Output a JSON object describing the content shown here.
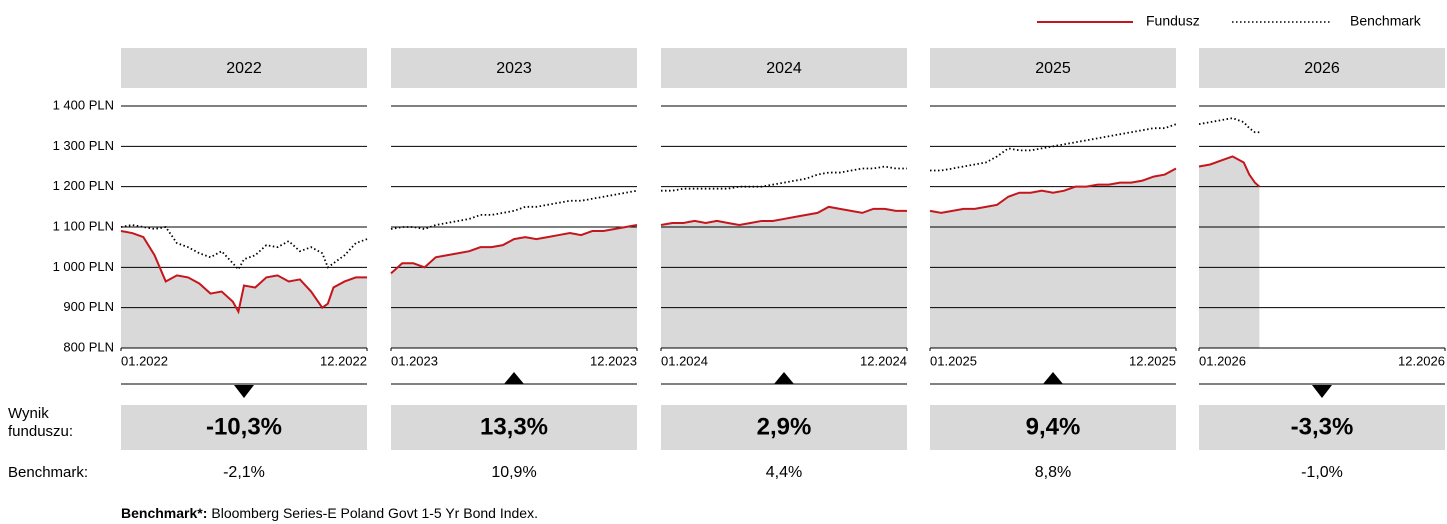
{
  "legend": {
    "series": [
      {
        "name": "Fundusz",
        "color": "#c4161c"
      },
      {
        "name": "Benchmark",
        "color": "#000000"
      }
    ]
  },
  "y_axis": {
    "ylim": [
      800,
      1400
    ],
    "yticks": [
      {
        "value": 800,
        "label": "800 PLN"
      },
      {
        "value": 900,
        "label": "900 PLN"
      },
      {
        "value": 1000,
        "label": "1 000 PLN"
      },
      {
        "value": 1100,
        "label": "1 100 PLN"
      },
      {
        "value": 1200,
        "label": "1 200 PLN"
      },
      {
        "value": 1300,
        "label": "1 300 PLN"
      },
      {
        "value": 1400,
        "label": "1 400 PLN"
      }
    ]
  },
  "row_labels": {
    "fund": "Wynik funduszu:",
    "benchmark": "Benchmark:"
  },
  "chart_data": [
    {
      "type": "line",
      "title": "2022",
      "xlim": [
        1,
        12
      ],
      "xticks": [
        {
          "value": 1,
          "label": "01.2022"
        },
        {
          "value": 12,
          "label": "12.2022"
        }
      ],
      "x": [
        1,
        1.5,
        2,
        2.5,
        3,
        3.5,
        4,
        4.5,
        5,
        5.5,
        6,
        6.25,
        6.5,
        7,
        7.5,
        8,
        8.5,
        9,
        9.5,
        10,
        10.25,
        10.5,
        11,
        11.5,
        12
      ],
      "series": [
        {
          "values": [
            1090,
            1085,
            1075,
            1030,
            965,
            980,
            975,
            960,
            935,
            940,
            915,
            890,
            955,
            950,
            975,
            980,
            965,
            970,
            940,
            900,
            910,
            950,
            965,
            975,
            975
          ]
        },
        {
          "values": [
            1100,
            1105,
            1100,
            1095,
            1100,
            1060,
            1050,
            1035,
            1025,
            1040,
            1010,
            995,
            1020,
            1030,
            1055,
            1050,
            1065,
            1040,
            1050,
            1035,
            1000,
            1010,
            1030,
            1060,
            1070
          ]
        }
      ],
      "fund_return": -10.3,
      "fund_return_label": "-10,3%",
      "benchmark_return": -2.1,
      "benchmark_return_label": "-2,1%"
    },
    {
      "type": "line",
      "title": "2023",
      "xlim": [
        1,
        12
      ],
      "xticks": [
        {
          "value": 1,
          "label": "01.2023"
        },
        {
          "value": 12,
          "label": "12.2023"
        }
      ],
      "x": [
        1,
        1.5,
        2,
        2.5,
        3,
        3.5,
        4,
        4.5,
        5,
        5.5,
        6,
        6.5,
        7,
        7.5,
        8,
        8.5,
        9,
        9.5,
        10,
        10.5,
        11,
        11.5,
        12
      ],
      "series": [
        {
          "values": [
            985,
            1010,
            1010,
            1000,
            1025,
            1030,
            1035,
            1040,
            1050,
            1050,
            1055,
            1070,
            1075,
            1070,
            1075,
            1080,
            1085,
            1080,
            1090,
            1090,
            1095,
            1100,
            1105
          ]
        },
        {
          "values": [
            1095,
            1100,
            1100,
            1095,
            1105,
            1110,
            1115,
            1120,
            1130,
            1130,
            1135,
            1140,
            1150,
            1150,
            1155,
            1160,
            1165,
            1165,
            1170,
            1175,
            1180,
            1185,
            1190
          ]
        }
      ],
      "fund_return": 13.3,
      "fund_return_label": "13,3%",
      "benchmark_return": 10.9,
      "benchmark_return_label": "10,9%"
    },
    {
      "type": "line",
      "title": "2024",
      "xlim": [
        1,
        12
      ],
      "xticks": [
        {
          "value": 1,
          "label": "01.2024"
        },
        {
          "value": 12,
          "label": "12.2024"
        }
      ],
      "x": [
        1,
        1.5,
        2,
        2.5,
        3,
        3.5,
        4,
        4.5,
        5,
        5.5,
        6,
        6.5,
        7,
        7.5,
        8,
        8.5,
        9,
        9.5,
        10,
        10.5,
        11,
        11.5,
        12
      ],
      "series": [
        {
          "values": [
            1105,
            1110,
            1110,
            1115,
            1110,
            1115,
            1110,
            1105,
            1110,
            1115,
            1115,
            1120,
            1125,
            1130,
            1135,
            1150,
            1145,
            1140,
            1135,
            1145,
            1145,
            1140,
            1140
          ]
        },
        {
          "values": [
            1190,
            1190,
            1195,
            1195,
            1195,
            1195,
            1195,
            1200,
            1200,
            1200,
            1205,
            1210,
            1215,
            1220,
            1230,
            1235,
            1235,
            1240,
            1245,
            1245,
            1250,
            1245,
            1245
          ]
        }
      ],
      "fund_return": 2.9,
      "fund_return_label": "2,9%",
      "benchmark_return": 4.4,
      "benchmark_return_label": "4,4%"
    },
    {
      "type": "line",
      "title": "2025",
      "xlim": [
        1,
        12
      ],
      "xticks": [
        {
          "value": 1,
          "label": "01.2025"
        },
        {
          "value": 12,
          "label": "12.2025"
        }
      ],
      "x": [
        1,
        1.5,
        2,
        2.5,
        3,
        3.5,
        4,
        4.5,
        5,
        5.5,
        6,
        6.5,
        7,
        7.5,
        8,
        8.5,
        9,
        9.5,
        10,
        10.5,
        11,
        11.5,
        12
      ],
      "series": [
        {
          "values": [
            1140,
            1135,
            1140,
            1145,
            1145,
            1150,
            1155,
            1175,
            1185,
            1185,
            1190,
            1185,
            1190,
            1200,
            1200,
            1205,
            1205,
            1210,
            1210,
            1215,
            1225,
            1230,
            1245
          ]
        },
        {
          "values": [
            1240,
            1240,
            1245,
            1250,
            1255,
            1260,
            1275,
            1295,
            1290,
            1290,
            1295,
            1300,
            1305,
            1310,
            1315,
            1320,
            1325,
            1330,
            1335,
            1340,
            1345,
            1345,
            1355
          ]
        }
      ],
      "fund_return": 9.4,
      "fund_return_label": "9,4%",
      "benchmark_return": 8.8,
      "benchmark_return_label": "8,8%"
    },
    {
      "type": "line",
      "title": "2026",
      "xlim": [
        1,
        12
      ],
      "xticks": [
        {
          "value": 1,
          "label": "01.2026"
        },
        {
          "value": 12,
          "label": "12.2026"
        }
      ],
      "x": [
        1,
        1.5,
        2,
        2.5,
        3,
        3.25,
        3.5,
        3.7
      ],
      "series": [
        {
          "values": [
            1250,
            1255,
            1265,
            1275,
            1260,
            1230,
            1210,
            1200
          ]
        },
        {
          "values": [
            1355,
            1360,
            1365,
            1370,
            1360,
            1345,
            1335,
            1335
          ]
        }
      ],
      "fund_return": -3.3,
      "fund_return_label": "-3,3%",
      "benchmark_return": -1.0,
      "benchmark_return_label": "-1,0%"
    }
  ],
  "footnote": {
    "label": "Benchmark*:",
    "text": "Bloomberg Series-E Poland Govt 1-5 Yr Bond Index."
  }
}
